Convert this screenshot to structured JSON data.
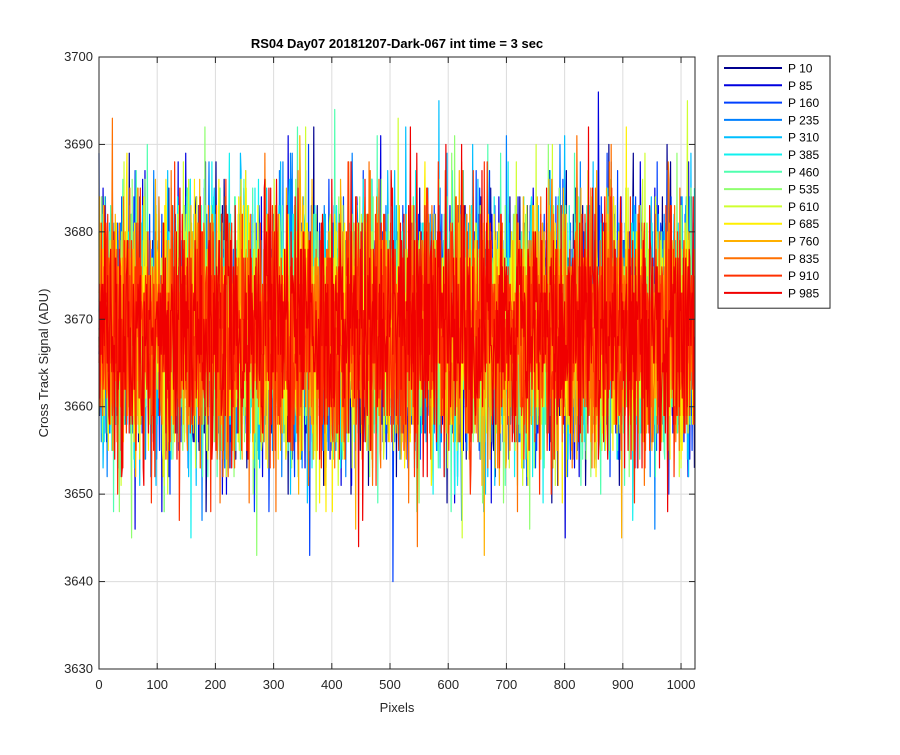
{
  "chart_data": {
    "type": "line",
    "title": "RS04 Day07 20181207-Dark-067 int time = 3 sec",
    "xlabel": "Pixels",
    "ylabel": "Cross Track Signal (ADU)",
    "xlim": [
      0,
      1024
    ],
    "ylim": [
      3630,
      3700
    ],
    "x_ticks": [
      0,
      100,
      200,
      300,
      400,
      500,
      600,
      700,
      800,
      900,
      1000
    ],
    "y_ticks": [
      3630,
      3640,
      3650,
      3660,
      3670,
      3680,
      3690,
      3700
    ],
    "grid": true,
    "legend_position": "outside-top-right",
    "series_summary": {
      "mean": 3669,
      "typical_range": [
        3655,
        3685
      ],
      "min_observed": 3639,
      "max_observed": 3698,
      "points_per_series": 1024
    },
    "series": [
      {
        "name": "P 10",
        "color": "#00008F"
      },
      {
        "name": "P 85",
        "color": "#0000E0"
      },
      {
        "name": "P 160",
        "color": "#0040FF"
      },
      {
        "name": "P 235",
        "color": "#0080FF"
      },
      {
        "name": "P 310",
        "color": "#00BFFF"
      },
      {
        "name": "P 385",
        "color": "#10F0EF"
      },
      {
        "name": "P 460",
        "color": "#50FFAF"
      },
      {
        "name": "P 535",
        "color": "#8FFF70"
      },
      {
        "name": "P 610",
        "color": "#CFFF30"
      },
      {
        "name": "P 685",
        "color": "#FFEF00"
      },
      {
        "name": "P 760",
        "color": "#FFB000"
      },
      {
        "name": "P 835",
        "color": "#FF7000"
      },
      {
        "name": "P 910",
        "color": "#FF3000"
      },
      {
        "name": "P 985",
        "color": "#F00000"
      }
    ]
  }
}
